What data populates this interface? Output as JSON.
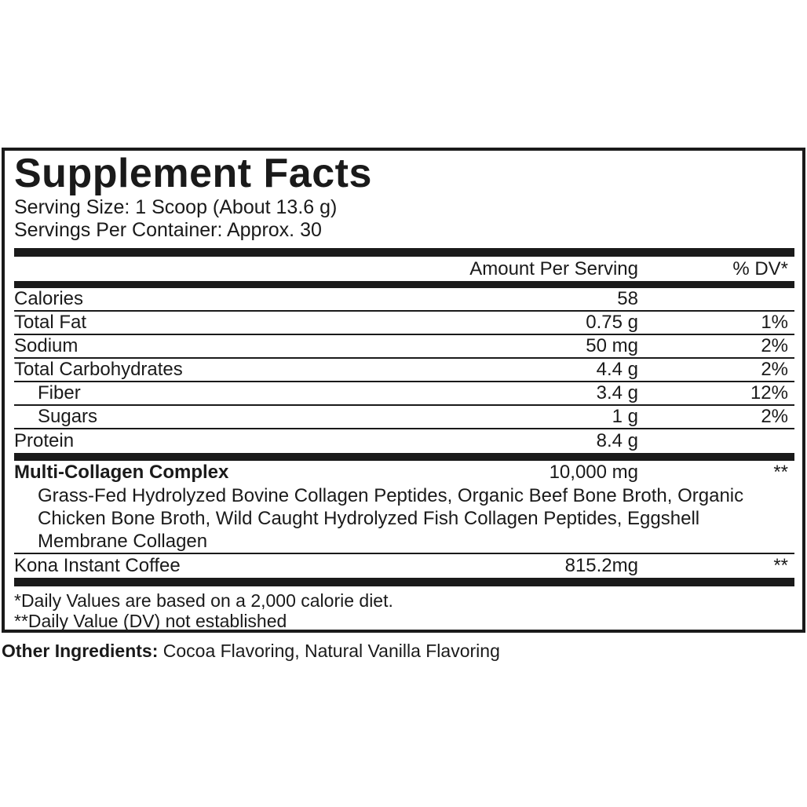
{
  "panel": {
    "title": "Supplement Facts",
    "serving_size": "Serving Size: 1 Scoop (About 13.6 g)",
    "servings_per_container": "Servings Per Container: Approx. 30",
    "columns": {
      "amount": "Amount Per Serving",
      "dv": "% DV*"
    },
    "rows": [
      {
        "name": "Calories",
        "amount": "58",
        "dv": ""
      },
      {
        "name": "Total Fat",
        "amount": "0.75 g",
        "dv": "1%"
      },
      {
        "name": "Sodium",
        "amount": "50 mg",
        "dv": "2%"
      },
      {
        "name": "Total Carbohydrates",
        "amount": "4.4 g",
        "dv": "2%"
      },
      {
        "name": "Fiber",
        "amount": "3.4 g",
        "dv": "12%"
      },
      {
        "name": "Sugars",
        "amount": "1 g",
        "dv": "2%"
      },
      {
        "name": "Protein",
        "amount": "8.4 g",
        "dv": ""
      }
    ],
    "complex": {
      "name": "Multi-Collagen Complex",
      "amount": "10,000 mg",
      "dv": "**",
      "description": "Grass-Fed Hydrolyzed Bovine Collagen Peptides, Organic Beef Bone Broth, Organic Chicken Bone Broth, Wild Caught Hydrolyzed Fish Collagen Peptides, Eggshell Membrane Collagen"
    },
    "coffee": {
      "name": "Kona Instant Coffee",
      "amount": "815.2mg",
      "dv": "**"
    },
    "footnotes": [
      "*Daily Values are based on a 2,000 calorie diet.",
      "**Daily Value (DV) not established"
    ],
    "colors": {
      "ink": "#1a1a1a",
      "background": "#ffffff"
    }
  },
  "other_ingredients": {
    "label": "Other Ingredients:",
    "value": " Cocoa Flavoring, Natural Vanilla Flavoring"
  }
}
